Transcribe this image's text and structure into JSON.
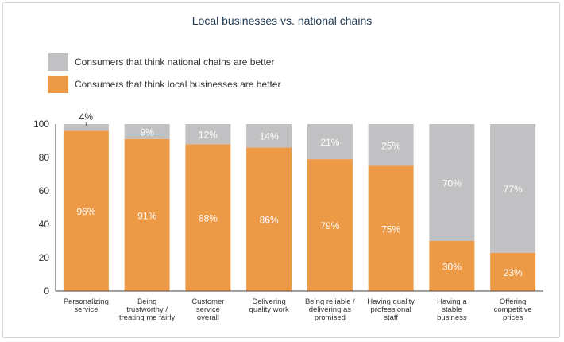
{
  "chart_data": {
    "type": "bar",
    "stacked": true,
    "title": "Local businesses vs. national chains",
    "ylim": [
      0,
      100
    ],
    "yticks": [
      0,
      20,
      40,
      60,
      80,
      100
    ],
    "grid": false,
    "legend_position": "top-left",
    "categories": [
      [
        "Personalizing",
        "service"
      ],
      [
        "Being",
        "trustworthy /",
        "treating me fairly"
      ],
      [
        "Customer",
        "service",
        "overall"
      ],
      [
        "Delivering",
        "quality work"
      ],
      [
        "Being reliable /",
        "delivering as",
        "promised"
      ],
      [
        "Having quality",
        "professional",
        "staff"
      ],
      [
        "Having a",
        "stable",
        "business"
      ],
      [
        "Offering",
        "competitive",
        "prices"
      ]
    ],
    "series": [
      {
        "name": "Consumers that think local businesses are better",
        "color": "#ed9a47",
        "values": [
          96,
          91,
          88,
          86,
          79,
          75,
          30,
          23
        ],
        "labels": [
          "96%",
          "91%",
          "88%",
          "86%",
          "79%",
          "75%",
          "30%",
          "23%"
        ]
      },
      {
        "name": "Consumers that think national chains are better",
        "color": "#c1c1c3",
        "values": [
          4,
          9,
          12,
          14,
          21,
          25,
          70,
          77
        ],
        "labels": [
          "4%",
          "9%",
          "12%",
          "14%",
          "21%",
          "25%",
          "70%",
          "77%"
        ]
      }
    ]
  }
}
